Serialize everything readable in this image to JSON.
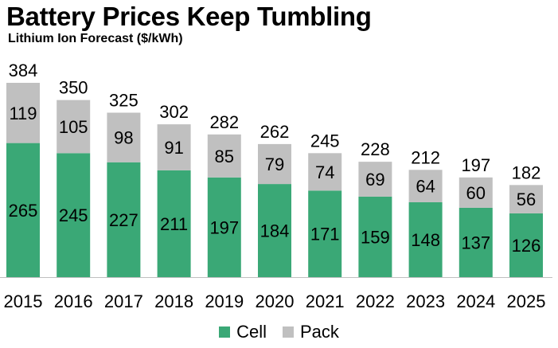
{
  "chart_data": {
    "type": "bar",
    "stacked": true,
    "title": "Battery Prices Keep Tumbling",
    "subtitle": "Lithium Ion Forecast ($/kWh)",
    "categories": [
      "2015",
      "2016",
      "2017",
      "2018",
      "2019",
      "2020",
      "2021",
      "2022",
      "2023",
      "2024",
      "2025"
    ],
    "series": [
      {
        "name": "Cell",
        "color": "#3aa876",
        "values": [
          265,
          245,
          227,
          211,
          197,
          184,
          171,
          159,
          148,
          137,
          126
        ]
      },
      {
        "name": "Pack",
        "color": "#c0c0c0",
        "values": [
          119,
          105,
          98,
          91,
          85,
          79,
          74,
          69,
          64,
          60,
          56
        ]
      }
    ],
    "totals": [
      384,
      350,
      325,
      302,
      282,
      262,
      245,
      228,
      212,
      197,
      182
    ],
    "ylim": [
      0,
      384
    ],
    "xlabel": "",
    "ylabel": "",
    "legend_position": "bottom"
  }
}
